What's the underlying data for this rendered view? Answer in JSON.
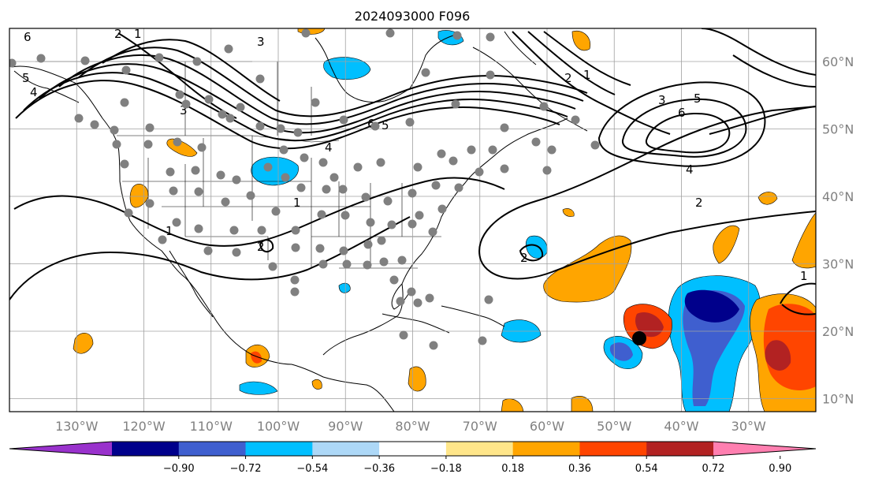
{
  "title": "2024093000 F096",
  "map": {
    "lon_range": [
      -140,
      -20
    ],
    "lat_range": [
      8,
      65
    ],
    "lon_ticks": [
      "130°W",
      "120°W",
      "110°W",
      "100°W",
      "90°W",
      "80°W",
      "70°W",
      "60°W",
      "50°W",
      "40°W",
      "30°W"
    ],
    "lat_ticks": [
      "60°N",
      "50°N",
      "40°N",
      "30°N",
      "20°N",
      "10°N"
    ],
    "gridlines": true,
    "contour_labels": [
      "6",
      "5",
      "4",
      "3",
      "2",
      "1",
      "6",
      "5",
      "4",
      "3",
      "2",
      "1",
      "2",
      "1",
      "6",
      "5",
      "4",
      "2",
      "1",
      "2",
      "1",
      "3"
    ],
    "station_markers": "gray dots",
    "storm_marker": "black dot"
  },
  "colorbar": {
    "ticks": [
      "−0.90",
      "−0.72",
      "−0.54",
      "−0.36",
      "−0.18",
      "0.18",
      "0.36",
      "0.54",
      "0.72",
      "0.90"
    ],
    "colors": [
      "#9932cc",
      "#00008b",
      "#3f5fcf",
      "#00bfff",
      "#add8f7",
      "#ffffff",
      "#ffe68a",
      "#ffa500",
      "#ff4500",
      "#b22222",
      "#ff7fb0"
    ],
    "extend": "both"
  }
}
